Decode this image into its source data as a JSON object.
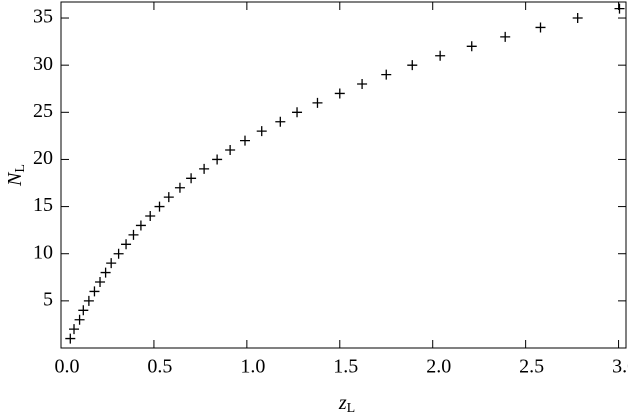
{
  "chart_data": {
    "type": "scatter",
    "x_label": {
      "main": "z",
      "sub": "L"
    },
    "y_label": {
      "main": "N",
      "sub": "L"
    },
    "marker": "+",
    "color": "#000000",
    "x": [
      0.05,
      0.07,
      0.1,
      0.12,
      0.15,
      0.18,
      0.21,
      0.24,
      0.27,
      0.31,
      0.35,
      0.39,
      0.43,
      0.48,
      0.53,
      0.58,
      0.64,
      0.7,
      0.77,
      0.84,
      0.91,
      0.99,
      1.08,
      1.18,
      1.27,
      1.38,
      1.5,
      1.62,
      1.75,
      1.89,
      2.04,
      2.21,
      2.39,
      2.58,
      2.78,
      3.005
    ],
    "values": [
      1,
      2,
      3,
      4,
      5,
      6,
      7,
      8,
      9,
      10,
      11,
      12,
      13,
      14,
      15,
      16,
      17,
      18,
      19,
      20,
      21,
      22,
      23,
      24,
      25,
      26,
      27,
      28,
      29,
      30,
      31,
      32,
      33,
      34,
      35,
      36
    ],
    "xlim": [
      0,
      3.04
    ],
    "ylim": [
      0,
      36.7
    ],
    "xticks": [
      {
        "value": 0,
        "label": "0.0"
      },
      {
        "value": 0.5,
        "label": "0.5"
      },
      {
        "value": 1,
        "label": "1.0"
      },
      {
        "value": 1.5,
        "label": "1.5"
      },
      {
        "value": 2,
        "label": "2.0"
      },
      {
        "value": 2.5,
        "label": "2.5"
      },
      {
        "value": 3,
        "label": "3.0"
      }
    ],
    "yticks": [
      5,
      10,
      15,
      20,
      25,
      30,
      35
    ]
  }
}
